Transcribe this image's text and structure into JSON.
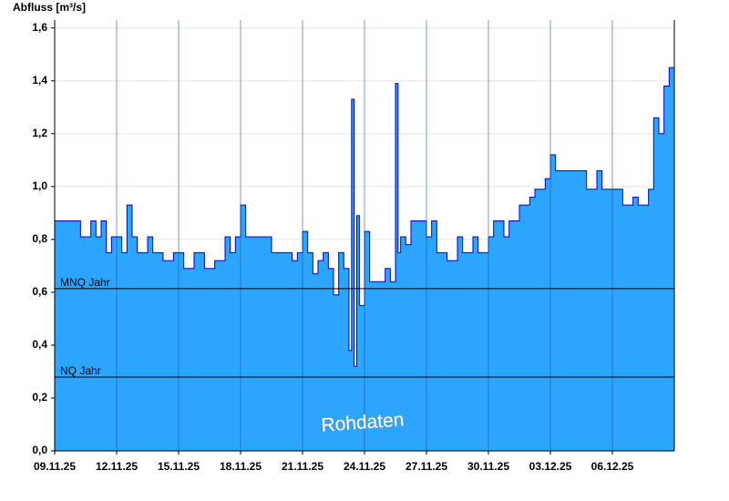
{
  "chart_data": {
    "type": "area",
    "ylabel": "Abfluss [m³/s]",
    "color": "#2ca5ff",
    "line_color": "#0000c8",
    "x": [
      "2025-11-09T00:00",
      "2025-11-10T00:00",
      "2025-11-10T06:00",
      "2025-11-10T18:00",
      "2025-11-11T00:00",
      "2025-11-11T06:00",
      "2025-11-11T12:00",
      "2025-11-11T18:00",
      "2025-11-12T06:00",
      "2025-11-12T12:00",
      "2025-11-12T18:00",
      "2025-11-13T00:00",
      "2025-11-13T12:00",
      "2025-11-13T18:00",
      "2025-11-14T06:00",
      "2025-11-14T18:00",
      "2025-11-15T06:00",
      "2025-11-15T18:00",
      "2025-11-16T06:00",
      "2025-11-16T18:00",
      "2025-11-17T06:00",
      "2025-11-17T12:00",
      "2025-11-17T18:00",
      "2025-11-18T00:00",
      "2025-11-18T06:00",
      "2025-11-19T06:00",
      "2025-11-19T12:00",
      "2025-11-20T06:00",
      "2025-11-20T12:00",
      "2025-11-20T18:00",
      "2025-11-21T00:00",
      "2025-11-21T06:00",
      "2025-11-21T12:00",
      "2025-11-21T18:00",
      "2025-11-22T00:00",
      "2025-11-22T06:00",
      "2025-11-22T12:00",
      "2025-11-22T18:00",
      "2025-11-23T00:00",
      "2025-11-23T06:00",
      "2025-11-23T09:00",
      "2025-11-23T12:00",
      "2025-11-23T15:00",
      "2025-11-23T18:00",
      "2025-11-24T00:00",
      "2025-11-24T06:00",
      "2025-11-24T12:00",
      "2025-11-25T00:00",
      "2025-11-25T06:00",
      "2025-11-25T12:00",
      "2025-11-25T15:00",
      "2025-11-25T18:00",
      "2025-11-26T00:00",
      "2025-11-26T06:00",
      "2025-11-26T18:00",
      "2025-11-27T00:00",
      "2025-11-27T06:00",
      "2025-11-27T12:00",
      "2025-11-28T00:00",
      "2025-11-28T12:00",
      "2025-11-28T18:00",
      "2025-11-29T06:00",
      "2025-11-29T12:00",
      "2025-11-30T00:00",
      "2025-11-30T06:00",
      "2025-11-30T18:00",
      "2025-12-01T00:00",
      "2025-12-01T12:00",
      "2025-12-02T00:00",
      "2025-12-02T06:00",
      "2025-12-02T18:00",
      "2025-12-03T00:00",
      "2025-12-03T06:00",
      "2025-12-04T06:00",
      "2025-12-04T18:00",
      "2025-12-05T06:00",
      "2025-12-05T12:00",
      "2025-12-06T06:00",
      "2025-12-06T12:00",
      "2025-12-07T00:00",
      "2025-12-07T06:00",
      "2025-12-07T18:00",
      "2025-12-08T00:00",
      "2025-12-08T06:00",
      "2025-12-08T12:00",
      "2025-12-08T18:00",
      "2025-12-09T00:00"
    ],
    "values": [
      0.87,
      0.87,
      0.81,
      0.87,
      0.81,
      0.87,
      0.75,
      0.81,
      0.75,
      0.93,
      0.81,
      0.75,
      0.81,
      0.75,
      0.72,
      0.75,
      0.69,
      0.75,
      0.69,
      0.72,
      0.81,
      0.75,
      0.81,
      0.93,
      0.81,
      0.81,
      0.75,
      0.75,
      0.72,
      0.75,
      0.83,
      0.75,
      0.67,
      0.72,
      0.75,
      0.69,
      0.59,
      0.75,
      0.69,
      0.38,
      1.33,
      0.32,
      0.89,
      0.55,
      0.83,
      0.64,
      0.64,
      0.69,
      0.64,
      1.39,
      0.75,
      0.81,
      0.78,
      0.87,
      0.87,
      0.81,
      0.87,
      0.75,
      0.72,
      0.81,
      0.75,
      0.81,
      0.75,
      0.81,
      0.87,
      0.81,
      0.87,
      0.93,
      0.96,
      0.99,
      1.03,
      1.12,
      1.06,
      1.06,
      0.99,
      1.06,
      0.99,
      0.99,
      0.93,
      0.96,
      0.93,
      0.99,
      1.26,
      1.2,
      1.38,
      1.45,
      1.46
    ],
    "xlim": [
      "2025-11-09T00:00",
      "2025-12-09T00:00"
    ],
    "xticks": [
      {
        "value": "2025-11-09T00:00",
        "label": "09.11.25"
      },
      {
        "value": "2025-11-12T00:00",
        "label": "12.11.25"
      },
      {
        "value": "2025-11-15T00:00",
        "label": "15.11.25"
      },
      {
        "value": "2025-11-18T00:00",
        "label": "18.11.25"
      },
      {
        "value": "2025-11-21T00:00",
        "label": "21.11.25"
      },
      {
        "value": "2025-11-24T00:00",
        "label": "24.11.25"
      },
      {
        "value": "2025-11-27T00:00",
        "label": "27.11.25"
      },
      {
        "value": "2025-11-30T00:00",
        "label": "30.11.25"
      },
      {
        "value": "2025-12-03T00:00",
        "label": "03.12.25"
      },
      {
        "value": "2025-12-06T00:00",
        "label": "06.12.25"
      }
    ],
    "ylim": [
      0,
      1.63
    ],
    "yticks": [
      {
        "value": 0,
        "label": "0,0"
      },
      {
        "value": 0.2,
        "label": "0,2"
      },
      {
        "value": 0.4,
        "label": "0,4"
      },
      {
        "value": 0.6,
        "label": "0,6"
      },
      {
        "value": 0.8,
        "label": "0,8"
      },
      {
        "value": 1.0,
        "label": "1,0"
      },
      {
        "value": 1.2,
        "label": "1,2"
      },
      {
        "value": 1.4,
        "label": "1,4"
      },
      {
        "value": 1.6,
        "label": "1,6"
      }
    ],
    "reference_lines": [
      {
        "label": "MNQ Jahr",
        "value": 0.614
      },
      {
        "label": "NQ Jahr",
        "value": 0.279
      }
    ],
    "watermark": "Rohdaten",
    "grid": true
  }
}
